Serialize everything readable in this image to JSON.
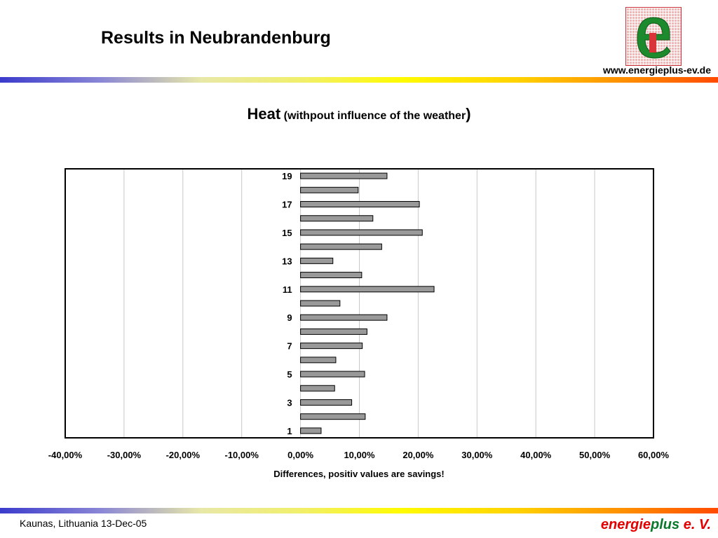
{
  "slide": {
    "title": "Results in Neubrandenburg",
    "website": "www.energieplus-ev.de",
    "footer_left": "Kaunas, Lithuania  13-Dec-05",
    "brand_part1": "energie",
    "brand_part2": "plus",
    "brand_part3": " e. V.",
    "logo_letter": "e"
  },
  "chart_title": {
    "main": "Heat",
    "sub": "(withpout influence of the weather",
    "close": ")"
  },
  "chart_data": {
    "type": "bar",
    "orientation": "horizontal",
    "categories": [
      "1",
      "2",
      "3",
      "4",
      "5",
      "6",
      "7",
      "8",
      "9",
      "10",
      "11",
      "12",
      "13",
      "14",
      "15",
      "16",
      "17",
      "18",
      "19"
    ],
    "values": [
      3.5,
      11.0,
      8.7,
      5.8,
      10.9,
      6.0,
      10.5,
      11.3,
      14.7,
      6.7,
      22.7,
      10.4,
      5.5,
      13.8,
      20.7,
      12.3,
      20.2,
      9.8,
      14.7
    ],
    "xlim": [
      -40,
      60
    ],
    "xticks": [
      "-40,00%",
      "-30,00%",
      "-20,00%",
      "-10,00%",
      "0,00%",
      "10,00%",
      "20,00%",
      "30,00%",
      "40,00%",
      "50,00%",
      "60,00%"
    ],
    "ytick_labels_shown": [
      "1",
      "3",
      "5",
      "7",
      "9",
      "11",
      "13",
      "15",
      "17",
      "19"
    ],
    "xlabel": "Differences, positiv values are savings!",
    "ylabel": "",
    "grid": true,
    "bar_color": "#999999"
  }
}
